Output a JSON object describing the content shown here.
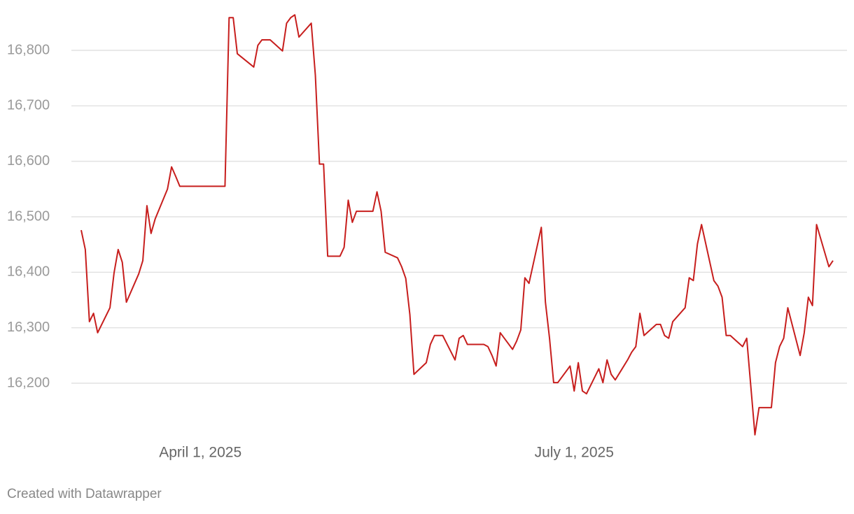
{
  "chart_data": {
    "type": "line",
    "x": [
      "2025-03-03",
      "2025-03-04",
      "2025-03-05",
      "2025-03-06",
      "2025-03-07",
      "2025-03-10",
      "2025-03-11",
      "2025-03-12",
      "2025-03-13",
      "2025-03-14",
      "2025-03-17",
      "2025-03-18",
      "2025-03-19",
      "2025-03-20",
      "2025-03-21",
      "2025-03-24",
      "2025-03-25",
      "2025-03-26",
      "2025-03-27",
      "2025-03-28",
      "2025-03-31",
      "2025-04-01",
      "2025-04-02",
      "2025-04-03",
      "2025-04-04",
      "2025-04-07",
      "2025-04-08",
      "2025-04-09",
      "2025-04-10",
      "2025-04-14",
      "2025-04-15",
      "2025-04-16",
      "2025-04-17",
      "2025-04-18",
      "2025-04-21",
      "2025-04-22",
      "2025-04-23",
      "2025-04-24",
      "2025-04-25",
      "2025-04-28",
      "2025-04-29",
      "2025-04-30",
      "2025-05-01",
      "2025-05-02",
      "2025-05-05",
      "2025-05-06",
      "2025-05-07",
      "2025-05-08",
      "2025-05-09",
      "2025-05-12",
      "2025-05-13",
      "2025-05-14",
      "2025-05-15",
      "2025-05-16",
      "2025-05-19",
      "2025-05-20",
      "2025-05-21",
      "2025-05-22",
      "2025-05-23",
      "2025-05-26",
      "2025-05-27",
      "2025-05-28",
      "2025-05-29",
      "2025-05-30",
      "2025-06-02",
      "2025-06-03",
      "2025-06-04",
      "2025-06-05",
      "2025-06-06",
      "2025-06-09",
      "2025-06-10",
      "2025-06-11",
      "2025-06-12",
      "2025-06-13",
      "2025-06-16",
      "2025-06-17",
      "2025-06-18",
      "2025-06-19",
      "2025-06-20",
      "2025-06-23",
      "2025-06-24",
      "2025-06-25",
      "2025-06-26",
      "2025-06-27",
      "2025-06-30",
      "2025-07-01",
      "2025-07-02",
      "2025-07-03",
      "2025-07-04",
      "2025-07-07",
      "2025-07-08",
      "2025-07-09",
      "2025-07-10",
      "2025-07-11",
      "2025-07-14",
      "2025-07-15",
      "2025-07-16",
      "2025-07-17",
      "2025-07-18",
      "2025-07-21",
      "2025-07-22",
      "2025-07-23",
      "2025-07-24",
      "2025-07-25",
      "2025-07-28",
      "2025-07-29",
      "2025-07-30",
      "2025-07-31",
      "2025-08-01",
      "2025-08-04",
      "2025-08-05",
      "2025-08-06",
      "2025-08-07",
      "2025-08-08",
      "2025-08-11",
      "2025-08-12",
      "2025-08-14",
      "2025-08-15",
      "2025-08-18",
      "2025-08-19",
      "2025-08-20",
      "2025-08-21",
      "2025-08-22",
      "2025-08-25",
      "2025-08-26",
      "2025-08-27",
      "2025-08-28",
      "2025-08-29",
      "2025-09-01",
      "2025-09-02"
    ],
    "values": [
      16476,
      16441,
      16311,
      16326,
      16291,
      16336,
      16399,
      16441,
      16418,
      16346,
      16397,
      16421,
      16520,
      16470,
      16496,
      16550,
      16590,
      16573,
      16555,
      16555,
      16555,
      16555,
      16555,
      16555,
      16555,
      16555,
      16859,
      16859,
      16794,
      16770,
      16809,
      16819,
      16819,
      16819,
      16799,
      16849,
      16859,
      16864,
      16824,
      16849,
      16755,
      16595,
      16595,
      16429,
      16429,
      16445,
      16530,
      16490,
      16510,
      16510,
      16510,
      16545,
      16510,
      16436,
      16426,
      16410,
      16389,
      16324,
      16216,
      16237,
      16270,
      16286,
      16286,
      16286,
      16242,
      16281,
      16286,
      16270,
      16270,
      16270,
      16266,
      16250,
      16231,
      16291,
      16261,
      16276,
      16296,
      16390,
      16380,
      16481,
      16346,
      16281,
      16201,
      16201,
      16231,
      16186,
      16237,
      16186,
      16181,
      16226,
      16201,
      16242,
      16216,
      16206,
      16242,
      16256,
      16266,
      16326,
      16286,
      16306,
      16306,
      16286,
      16281,
      16311,
      16336,
      16390,
      16385,
      16451,
      16486,
      16385,
      16375,
      16355,
      16286,
      16286,
      16266,
      16281,
      16107,
      16156,
      16156,
      16237,
      16266,
      16281,
      16336,
      16250,
      16291,
      16355,
      16340,
      16486,
      16410,
      16421
    ],
    "color": "#c71e1d",
    "xlim": [
      "2025-03-03",
      "2025-09-02"
    ],
    "xticks": [
      {
        "value": "2025-04-01",
        "label": "April 1, 2025"
      },
      {
        "value": "2025-07-01",
        "label": "July 1, 2025"
      }
    ],
    "ylim": [
      16100,
      16870
    ],
    "yticks": [
      {
        "value": 16200,
        "label": "16,200"
      },
      {
        "value": 16300,
        "label": "16,300"
      },
      {
        "value": 16400,
        "label": "16,400"
      },
      {
        "value": 16500,
        "label": "16,500"
      },
      {
        "value": 16600,
        "label": "16,600"
      },
      {
        "value": 16700,
        "label": "16,700"
      },
      {
        "value": 16800,
        "label": "16,800"
      }
    ],
    "grid": true,
    "footer": "Created with Datawrapper"
  }
}
